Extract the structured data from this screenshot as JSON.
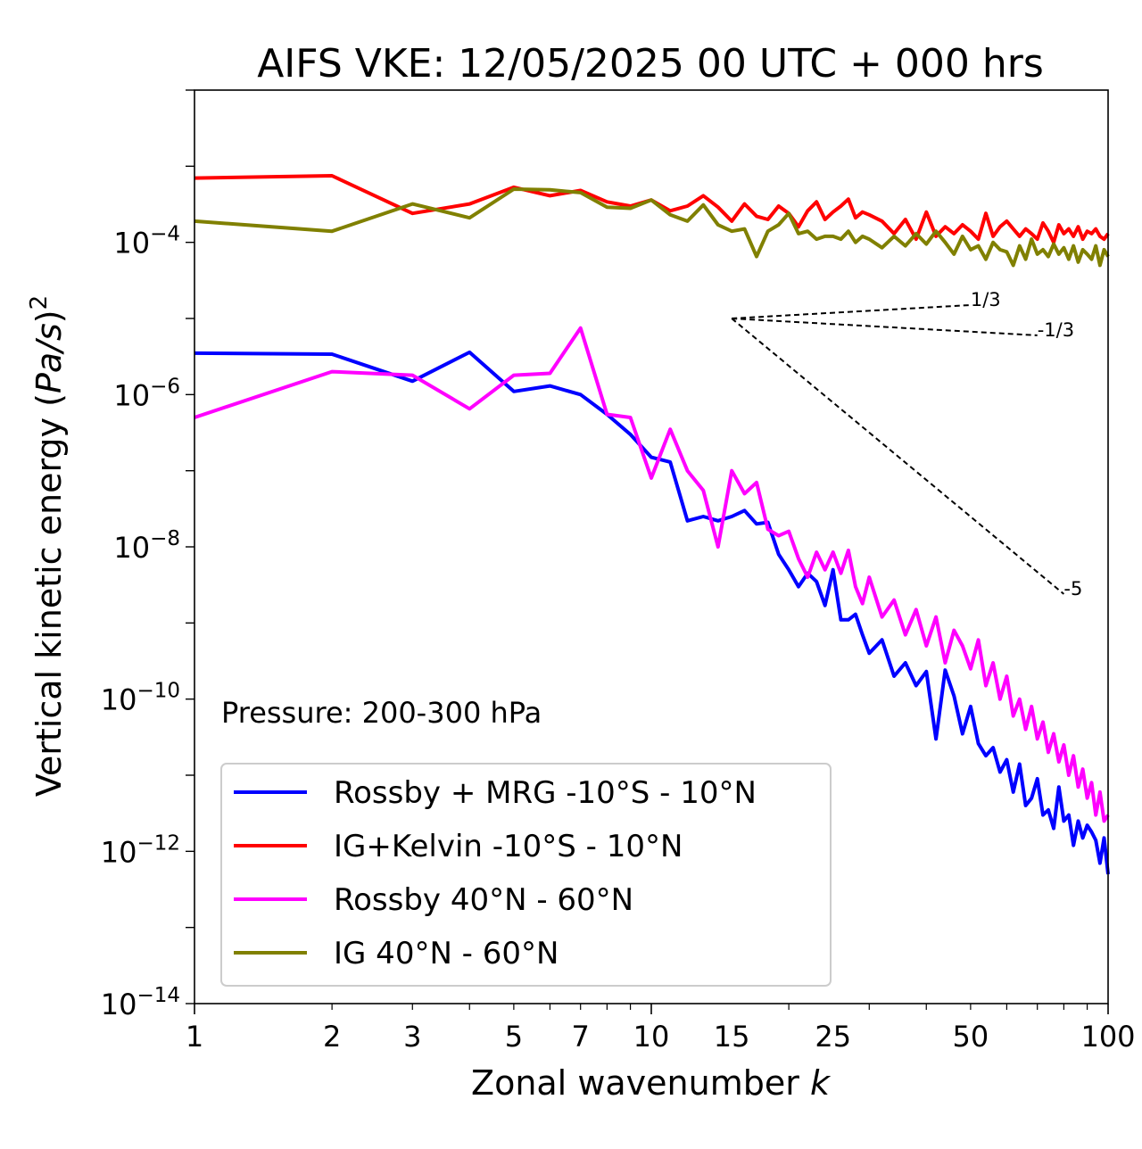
{
  "chart_data": {
    "type": "line",
    "title": "AIFS VKE: 12/05/2025 00 UTC + 000 hrs",
    "xlabel_main": "Zonal wavenumber ",
    "xlabel_var": "k",
    "ylabel_main": "Vertical kinetic energy (",
    "ylabel_var": "Pa/s",
    "ylabel_end": ")",
    "ylabel_exp": "2",
    "x_scale": "log",
    "y_scale": "log",
    "xlim": [
      1,
      100
    ],
    "ylim": [
      1e-14,
      0.01
    ],
    "x_ticks": [
      1,
      2,
      3,
      5,
      7,
      10,
      15,
      25,
      50,
      100
    ],
    "x_tick_labels": [
      "1",
      "2",
      "3",
      "5",
      "7",
      "10",
      "15",
      "25",
      "50",
      "100"
    ],
    "y_ticks": [
      {
        "value": 0.0001,
        "base": "10",
        "exp": "−4"
      },
      {
        "value": 1e-06,
        "base": "10",
        "exp": "−6"
      },
      {
        "value": 1e-08,
        "base": "10",
        "exp": "−8"
      },
      {
        "value": 1e-10,
        "base": "10",
        "exp": "−10"
      },
      {
        "value": 1e-12,
        "base": "10",
        "exp": "−12"
      },
      {
        "value": 1e-14,
        "base": "10",
        "exp": "−14"
      }
    ],
    "annotation": "Pressure: 200-300 hPa",
    "legend_position": "lower-left",
    "grid": false,
    "reference_slopes": [
      {
        "label": "1/3",
        "from": [
          15,
          1e-05
        ],
        "to": [
          50,
          1.5e-05
        ]
      },
      {
        "label": "-1/3",
        "from": [
          15,
          1e-05
        ],
        "to": [
          70,
          6e-06
        ]
      },
      {
        "label": "-5",
        "from": [
          15,
          1e-05
        ],
        "to": [
          80,
          2.4e-09
        ]
      }
    ],
    "series": [
      {
        "name": "Rossby + MRG -10°S - 10°N",
        "color": "#0000ff",
        "x": [
          1,
          2,
          3,
          4,
          5,
          6,
          7,
          8,
          9,
          10,
          11,
          12,
          13,
          14,
          15,
          16,
          17,
          18,
          19,
          20,
          21,
          22,
          23,
          24,
          25,
          26,
          27,
          28,
          29,
          30,
          32,
          34,
          36,
          38,
          40,
          42,
          44,
          46,
          48,
          50,
          52,
          54,
          56,
          58,
          60,
          62,
          64,
          66,
          68,
          70,
          72,
          74,
          76,
          78,
          80,
          82,
          84,
          86,
          88,
          90,
          92,
          94,
          96,
          98,
          100
        ],
        "y": [
          3.5e-06,
          3.4e-06,
          1.5e-06,
          3.6e-06,
          1.1e-06,
          1.3e-06,
          1e-06,
          5.5e-07,
          3e-07,
          1.5e-07,
          1.3e-07,
          2.2e-08,
          2.5e-08,
          2.2e-08,
          2.5e-08,
          3e-08,
          2e-08,
          2.1e-08,
          8e-09,
          5e-09,
          3e-09,
          4.5e-09,
          3.5e-09,
          1.7e-09,
          5e-09,
          1.1e-09,
          1.1e-09,
          1.3e-09,
          7e-10,
          4e-10,
          6e-10,
          2e-10,
          3e-10,
          1.5e-10,
          2.3e-10,
          3e-11,
          2.4e-10,
          1.1e-10,
          3.5e-11,
          8e-11,
          2.6e-11,
          1.8e-11,
          2.3e-11,
          1.1e-11,
          1.6e-11,
          6e-12,
          1.4e-11,
          4e-12,
          5e-12,
          9e-12,
          3e-12,
          3.5e-12,
          2e-12,
          7e-12,
          2.5e-12,
          3e-12,
          1.2e-12,
          2.5e-12,
          1.5e-12,
          2.2e-12,
          1.8e-12,
          1.4e-12,
          7e-13,
          1.5e-12,
          5e-13
        ]
      },
      {
        "name": "IG+Kelvin -10°S - 10°N",
        "color": "#ff0000",
        "x": [
          1,
          2,
          3,
          4,
          5,
          6,
          7,
          8,
          9,
          10,
          11,
          12,
          13,
          14,
          15,
          16,
          17,
          18,
          19,
          20,
          21,
          22,
          23,
          24,
          25,
          26,
          27,
          28,
          29,
          30,
          32,
          34,
          36,
          38,
          40,
          42,
          44,
          46,
          48,
          50,
          52,
          54,
          56,
          58,
          60,
          62,
          64,
          66,
          68,
          70,
          72,
          74,
          76,
          78,
          80,
          82,
          84,
          86,
          88,
          90,
          92,
          94,
          96,
          98,
          100
        ],
        "y": [
          0.0007,
          0.00075,
          0.00024,
          0.00032,
          0.00053,
          0.00041,
          0.00048,
          0.00034,
          0.0003,
          0.00036,
          0.00026,
          0.0003,
          0.00041,
          0.00029,
          0.00019,
          0.00032,
          0.00022,
          0.0002,
          0.0003,
          0.00024,
          0.00016,
          0.00026,
          0.00034,
          0.0002,
          0.00025,
          0.0003,
          0.00037,
          0.00021,
          0.00025,
          0.00023,
          0.00019,
          0.00013,
          0.0002,
          0.00011,
          0.00025,
          0.00012,
          0.00016,
          0.00013,
          0.00017,
          0.00014,
          0.00011,
          0.00024,
          0.00012,
          0.00016,
          0.00019,
          0.00015,
          0.00012,
          0.00015,
          0.00013,
          0.00011,
          0.00018,
          0.00014,
          0.0001,
          0.00017,
          0.00013,
          0.00015,
          0.00012,
          0.00016,
          0.00011,
          0.00014,
          0.00013,
          0.00015,
          0.00012,
          0.00011,
          0.00013
        ]
      },
      {
        "name": "Rossby 40°N - 60°N",
        "color": "#ff00ff",
        "x": [
          1,
          2,
          3,
          4,
          5,
          6,
          7,
          8,
          9,
          10,
          11,
          12,
          13,
          14,
          15,
          16,
          17,
          18,
          19,
          20,
          21,
          22,
          23,
          24,
          25,
          26,
          27,
          28,
          29,
          30,
          32,
          34,
          36,
          38,
          40,
          42,
          44,
          46,
          48,
          50,
          52,
          54,
          56,
          58,
          60,
          62,
          64,
          66,
          68,
          70,
          72,
          74,
          76,
          78,
          80,
          82,
          84,
          86,
          88,
          90,
          92,
          94,
          96,
          98,
          100
        ],
        "y": [
          5e-07,
          2e-06,
          1.8e-06,
          6.5e-07,
          1.8e-06,
          1.9e-06,
          7.5e-06,
          5.5e-07,
          5e-07,
          8e-08,
          3.5e-07,
          1e-07,
          5.5e-08,
          1e-08,
          1e-07,
          5e-08,
          7e-08,
          1.7e-08,
          1.4e-08,
          1.6e-08,
          7e-09,
          4e-09,
          8.5e-09,
          5e-09,
          8.5e-09,
          4.5e-09,
          9e-09,
          3e-09,
          1.8e-09,
          4e-09,
          1.2e-09,
          2e-09,
          7e-10,
          1.5e-09,
          5e-10,
          1.2e-09,
          3e-10,
          8e-10,
          5e-10,
          2.5e-10,
          6e-10,
          1.5e-10,
          3e-10,
          1e-10,
          2e-10,
          6e-11,
          1e-10,
          4e-11,
          8e-11,
          3e-11,
          5e-11,
          2e-11,
          3.5e-11,
          1.5e-11,
          2.5e-11,
          1e-11,
          1.8e-11,
          7e-12,
          1.2e-11,
          5e-12,
          8e-12,
          3e-12,
          6e-12,
          2.5e-12,
          3e-12
        ]
      },
      {
        "name": "IG 40°N - 60°N",
        "color": "#808000",
        "x": [
          1,
          2,
          3,
          4,
          5,
          6,
          7,
          8,
          9,
          10,
          11,
          12,
          13,
          14,
          15,
          16,
          17,
          18,
          19,
          20,
          21,
          22,
          23,
          24,
          25,
          26,
          27,
          28,
          29,
          30,
          32,
          34,
          36,
          38,
          40,
          42,
          44,
          46,
          48,
          50,
          52,
          54,
          56,
          58,
          60,
          62,
          64,
          66,
          68,
          70,
          72,
          74,
          76,
          78,
          80,
          82,
          84,
          86,
          88,
          90,
          92,
          94,
          96,
          98,
          100
        ],
        "y": [
          0.00019,
          0.00014,
          0.00032,
          0.00021,
          0.0005,
          0.00049,
          0.00045,
          0.00029,
          0.00028,
          0.00036,
          0.00023,
          0.00019,
          0.00031,
          0.00017,
          0.00014,
          0.00015,
          6.5e-05,
          0.00014,
          0.00017,
          0.00024,
          0.00013,
          0.00014,
          0.00011,
          0.00012,
          0.00012,
          0.00011,
          0.00014,
          0.0001,
          0.00012,
          0.00011,
          8.5e-05,
          0.00012,
          9e-05,
          0.00013,
          9.5e-05,
          0.00014,
          0.0001,
          7e-05,
          0.00012,
          8e-05,
          9e-05,
          6e-05,
          0.0001,
          8e-05,
          7.5e-05,
          5e-05,
          9e-05,
          6e-05,
          0.00011,
          7e-05,
          8e-05,
          6.5e-05,
          9.5e-05,
          7e-05,
          8.5e-05,
          6e-05,
          9e-05,
          5.5e-05,
          8e-05,
          7e-05,
          6e-05,
          9e-05,
          5e-05,
          8e-05,
          6.5e-05
        ]
      }
    ]
  }
}
